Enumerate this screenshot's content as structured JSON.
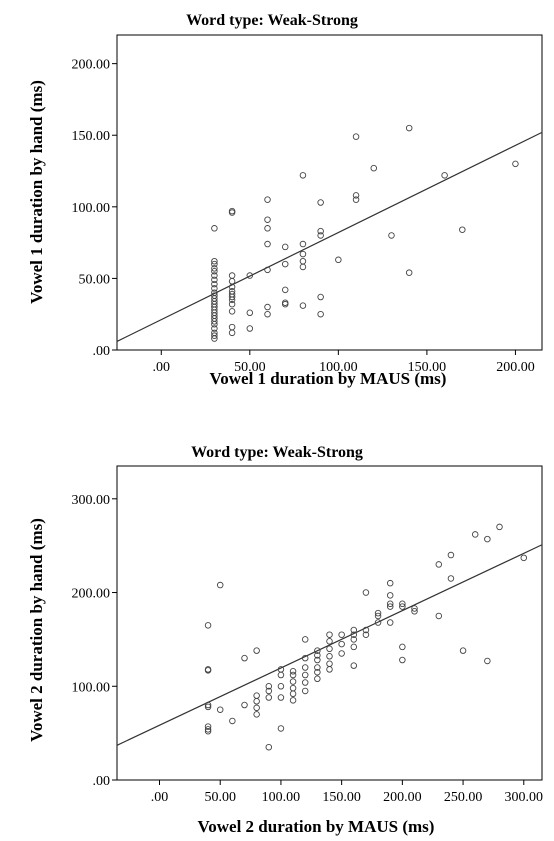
{
  "chart_data": [
    {
      "type": "scatter",
      "title": "Word type: Weak-Strong",
      "xlabel": "Vowel 1 duration by MAUS (ms)",
      "ylabel": "Vowel 1 duration by hand (ms)",
      "xlim": [
        -25,
        215
      ],
      "ylim": [
        0,
        220
      ],
      "xticks": [
        0,
        50,
        100,
        150,
        200
      ],
      "yticks": [
        0,
        50,
        100,
        150,
        200
      ],
      "xtick_labels": [
        ".00",
        "50.00",
        "100.00",
        "150.00",
        "200.00"
      ],
      "ytick_labels": [
        ".00",
        "50.00",
        "100.00",
        "150.00",
        "200.00"
      ],
      "fit_line": [
        [
          -25,
          6
        ],
        [
          215,
          152
        ]
      ],
      "grid": false,
      "legend": "none",
      "points": [
        [
          30,
          62
        ],
        [
          30,
          60
        ],
        [
          30,
          57
        ],
        [
          30,
          55
        ],
        [
          30,
          52
        ],
        [
          30,
          49
        ],
        [
          30,
          46
        ],
        [
          30,
          43
        ],
        [
          30,
          40
        ],
        [
          30,
          38
        ],
        [
          30,
          36
        ],
        [
          30,
          34
        ],
        [
          30,
          32
        ],
        [
          30,
          30
        ],
        [
          30,
          28
        ],
        [
          30,
          26
        ],
        [
          30,
          24
        ],
        [
          30,
          22
        ],
        [
          30,
          20
        ],
        [
          30,
          18
        ],
        [
          30,
          15
        ],
        [
          30,
          12
        ],
        [
          30,
          10
        ],
        [
          30,
          8
        ],
        [
          30,
          85
        ],
        [
          40,
          97
        ],
        [
          40,
          96
        ],
        [
          40,
          52
        ],
        [
          40,
          48
        ],
        [
          40,
          44
        ],
        [
          40,
          41
        ],
        [
          40,
          39
        ],
        [
          40,
          37
        ],
        [
          40,
          35
        ],
        [
          40,
          32
        ],
        [
          40,
          27
        ],
        [
          40,
          16
        ],
        [
          40,
          12
        ],
        [
          50,
          52
        ],
        [
          50,
          26
        ],
        [
          50,
          15
        ],
        [
          60,
          105
        ],
        [
          60,
          91
        ],
        [
          60,
          85
        ],
        [
          60,
          74
        ],
        [
          60,
          56
        ],
        [
          60,
          30
        ],
        [
          60,
          25
        ],
        [
          70,
          72
        ],
        [
          70,
          60
        ],
        [
          70,
          42
        ],
        [
          70,
          33
        ],
        [
          70,
          32
        ],
        [
          80,
          122
        ],
        [
          80,
          74
        ],
        [
          80,
          67
        ],
        [
          80,
          62
        ],
        [
          80,
          58
        ],
        [
          80,
          31
        ],
        [
          90,
          103
        ],
        [
          90,
          83
        ],
        [
          90,
          80
        ],
        [
          90,
          37
        ],
        [
          90,
          25
        ],
        [
          100,
          63
        ],
        [
          110,
          149
        ],
        [
          110,
          108
        ],
        [
          110,
          105
        ],
        [
          120,
          127
        ],
        [
          130,
          80
        ],
        [
          140,
          155
        ],
        [
          140,
          54
        ],
        [
          160,
          122
        ],
        [
          170,
          84
        ],
        [
          200,
          130
        ]
      ]
    },
    {
      "type": "scatter",
      "title": "Word type: Weak-Strong",
      "xlabel": "Vowel 2 duration by MAUS (ms)",
      "ylabel": "Vowel 2 duration by hand (ms)",
      "xlim": [
        -35,
        315
      ],
      "ylim": [
        0,
        335
      ],
      "xticks": [
        0,
        50,
        100,
        150,
        200,
        250,
        300
      ],
      "yticks": [
        0,
        100,
        200,
        300
      ],
      "xtick_labels": [
        ".00",
        "50.00",
        "100.00",
        "150.00",
        "200.00",
        "250.00",
        "300.00"
      ],
      "ytick_labels": [
        ".00",
        "100.00",
        "200.00",
        "300.00"
      ],
      "fit_line": [
        [
          -35,
          37
        ],
        [
          315,
          251
        ]
      ],
      "grid": false,
      "legend": "none",
      "points": [
        [
          40,
          165
        ],
        [
          40,
          118
        ],
        [
          40,
          117
        ],
        [
          40,
          80
        ],
        [
          40,
          78
        ],
        [
          40,
          57
        ],
        [
          40,
          54
        ],
        [
          40,
          52
        ],
        [
          50,
          208
        ],
        [
          50,
          75
        ],
        [
          60,
          63
        ],
        [
          70,
          130
        ],
        [
          70,
          80
        ],
        [
          80,
          138
        ],
        [
          80,
          90
        ],
        [
          80,
          84
        ],
        [
          80,
          77
        ],
        [
          80,
          70
        ],
        [
          90,
          100
        ],
        [
          90,
          95
        ],
        [
          90,
          88
        ],
        [
          90,
          35
        ],
        [
          100,
          118
        ],
        [
          100,
          112
        ],
        [
          100,
          100
        ],
        [
          100,
          88
        ],
        [
          100,
          55
        ],
        [
          110,
          116
        ],
        [
          110,
          112
        ],
        [
          110,
          105
        ],
        [
          110,
          98
        ],
        [
          110,
          92
        ],
        [
          110,
          85
        ],
        [
          120,
          150
        ],
        [
          120,
          130
        ],
        [
          120,
          120
        ],
        [
          120,
          112
        ],
        [
          120,
          104
        ],
        [
          120,
          95
        ],
        [
          130,
          138
        ],
        [
          130,
          133
        ],
        [
          130,
          128
        ],
        [
          130,
          120
        ],
        [
          130,
          115
        ],
        [
          130,
          108
        ],
        [
          140,
          155
        ],
        [
          140,
          148
        ],
        [
          140,
          140
        ],
        [
          140,
          132
        ],
        [
          140,
          124
        ],
        [
          140,
          118
        ],
        [
          150,
          155
        ],
        [
          150,
          145
        ],
        [
          150,
          135
        ],
        [
          160,
          160
        ],
        [
          160,
          155
        ],
        [
          160,
          150
        ],
        [
          160,
          142
        ],
        [
          160,
          122
        ],
        [
          170,
          200
        ],
        [
          170,
          160
        ],
        [
          170,
          155
        ],
        [
          180,
          178
        ],
        [
          180,
          175
        ],
        [
          180,
          168
        ],
        [
          190,
          210
        ],
        [
          190,
          197
        ],
        [
          190,
          188
        ],
        [
          190,
          185
        ],
        [
          190,
          168
        ],
        [
          200,
          188
        ],
        [
          200,
          185
        ],
        [
          200,
          142
        ],
        [
          200,
          128
        ],
        [
          210,
          183
        ],
        [
          210,
          180
        ],
        [
          230,
          230
        ],
        [
          230,
          175
        ],
        [
          240,
          240
        ],
        [
          240,
          215
        ],
        [
          250,
          138
        ],
        [
          260,
          262
        ],
        [
          270,
          257
        ],
        [
          270,
          127
        ],
        [
          280,
          270
        ],
        [
          300,
          237
        ]
      ]
    }
  ]
}
